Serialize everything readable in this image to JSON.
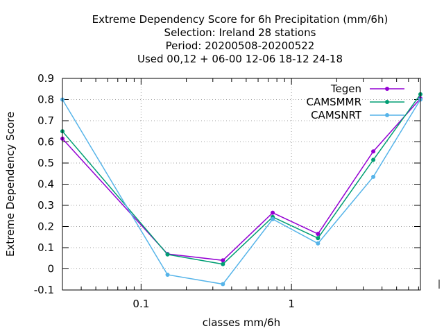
{
  "chart_data": {
    "type": "line",
    "title_lines": [
      "Extreme Dependency Score  for 6h Precipitation (mm/6h)",
      "Selection: Ireland     28 stations",
      "Period: 20200508-20200522",
      "Used  00,12  + 06-00 12-06 18-12 24-18"
    ],
    "xlabel": "classes mm/6h",
    "ylabel": "Extreme Dependency Score",
    "x_scale": "log",
    "xlim": [
      0.03,
      7.2
    ],
    "ylim": [
      -0.1,
      0.9
    ],
    "x_ticks": [
      {
        "value": 0.1,
        "label": "0.1"
      },
      {
        "value": 1,
        "label": "1"
      }
    ],
    "y_ticks": [
      {
        "value": -0.1,
        "label": "-0.1"
      },
      {
        "value": 0,
        "label": "0"
      },
      {
        "value": 0.1,
        "label": "0.1"
      },
      {
        "value": 0.2,
        "label": "0.2"
      },
      {
        "value": 0.3,
        "label": "0.3"
      },
      {
        "value": 0.4,
        "label": "0.4"
      },
      {
        "value": 0.5,
        "label": "0.5"
      },
      {
        "value": 0.6,
        "label": "0.6"
      },
      {
        "value": 0.7,
        "label": "0.7"
      },
      {
        "value": 0.8,
        "label": "0.8"
      },
      {
        "value": 0.9,
        "label": "0.9"
      }
    ],
    "grid": true,
    "legend_position": "top-right",
    "x": [
      0.03,
      0.15,
      0.35,
      0.75,
      1.5,
      3.5,
      7.2
    ],
    "series": [
      {
        "name": "Tegen",
        "color": "#9400d3",
        "values": [
          0.615,
          0.07,
          0.04,
          0.265,
          0.165,
          0.555,
          0.805
        ]
      },
      {
        "name": "CAMSMMR",
        "color": "#009e73",
        "values": [
          0.65,
          0.068,
          0.022,
          0.245,
          0.145,
          0.515,
          0.825
        ]
      },
      {
        "name": "CAMSNRT",
        "color": "#56b4e9",
        "values": [
          0.8,
          -0.028,
          -0.072,
          0.235,
          0.12,
          0.435,
          0.8
        ]
      }
    ]
  }
}
